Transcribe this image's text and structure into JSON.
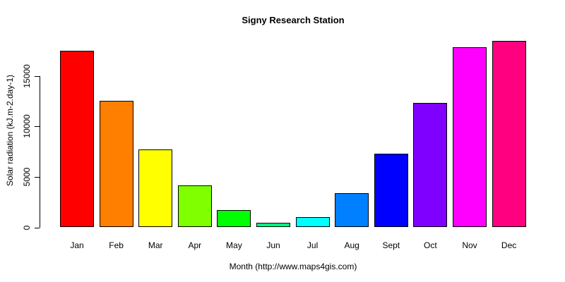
{
  "page": {
    "background_color": "#FFFFFF",
    "text_color": "#000000"
  },
  "chart_data": {
    "type": "bar",
    "title": "Signy Research Station",
    "xlabel": "Month (http://www.maps4gis.com)",
    "ylabel": "Solar radiation (kJ.m-2.day-1)",
    "categories": [
      "Jan",
      "Feb",
      "Mar",
      "Apr",
      "May",
      "Jun",
      "Jul",
      "Aug",
      "Sept",
      "Oct",
      "Nov",
      "Dec"
    ],
    "values": [
      17500,
      12500,
      7700,
      4150,
      1700,
      450,
      1000,
      3400,
      7300,
      12300,
      17800,
      18450
    ],
    "bar_colors": [
      "#FF0000",
      "#FF8000",
      "#FFFF00",
      "#80FF00",
      "#00FF00",
      "#00FF80",
      "#00FFFF",
      "#0080FF",
      "#0000FF",
      "#8000FF",
      "#FF00FF",
      "#FF0080"
    ],
    "bar_border_color": "#000000",
    "yticks": [
      0,
      5000,
      10000,
      15000
    ],
    "ytick_labels": [
      "0",
      "5000",
      "10000",
      "15000"
    ],
    "ylim": [
      0,
      18800
    ],
    "grid": false,
    "legend": null,
    "axis_color": "#000000"
  }
}
